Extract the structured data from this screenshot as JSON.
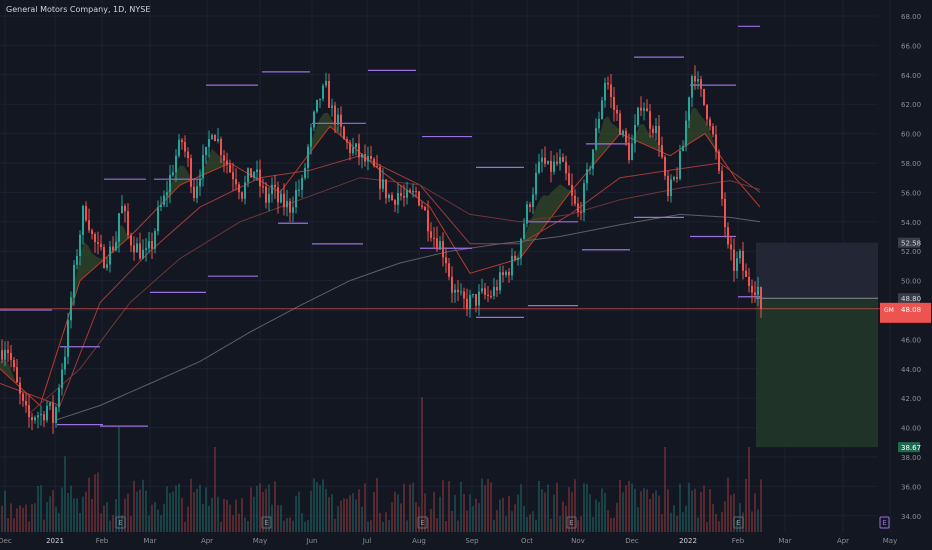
{
  "legend_text": "General Motors Company, 1D, NYSE",
  "colors": {
    "background": "#131722",
    "grid": "#1c2030",
    "up": "#26a69a",
    "down": "#ef5350",
    "ribbon": "#3d5a2a",
    "ma_fast": "#c0392b",
    "ma_mid": "#a23a3a",
    "ma_slow": "#6e3636",
    "ma_200": "#5d5f66",
    "pivot": "#9c6fe0",
    "current_price": "#ef5350",
    "profit_zone": "#1f3329",
    "risk_zone": "#232634"
  },
  "price_tags": {
    "stop": "52.58",
    "entry": "48.80",
    "last": "48.08",
    "target": "38.67",
    "last_prefix": "GM"
  },
  "earnings_marker": "E",
  "chart_data": {
    "type": "candlestick",
    "symbol": "GM",
    "title": "General Motors Company, 1D, NYSE",
    "y_ticks": [
      "68.00",
      "66.00",
      "64.00",
      "62.00",
      "60.00",
      "58.00",
      "56.00",
      "54.00",
      "52.00",
      "50.00",
      "48.00",
      "46.00",
      "44.00",
      "42.00",
      "40.00",
      "38.00",
      "36.00",
      "34.00"
    ],
    "ylim": [
      33.2,
      68.9
    ],
    "x_ticks": [
      "Dec",
      "2021",
      "Feb",
      "Mar",
      "Apr",
      "May",
      "Jun",
      "Jul",
      "Aug",
      "Sep",
      "Oct",
      "Nov",
      "Dec",
      "2022",
      "Feb",
      "Mar",
      "Apr",
      "May"
    ],
    "price_path": [
      [
        0,
        45.0
      ],
      [
        6,
        45.8
      ],
      [
        12,
        44.3
      ],
      [
        18,
        42.5
      ],
      [
        24,
        41.2
      ],
      [
        30,
        40.5
      ],
      [
        36,
        41.0
      ],
      [
        42,
        40.8
      ],
      [
        48,
        41.6
      ],
      [
        54,
        40.3
      ],
      [
        60,
        43.5
      ],
      [
        66,
        45.5
      ],
      [
        72,
        49.5
      ],
      [
        78,
        52.5
      ],
      [
        84,
        55.0
      ],
      [
        88,
        54.3
      ],
      [
        92,
        53.0
      ],
      [
        98,
        52.0
      ],
      [
        104,
        51.5
      ],
      [
        110,
        52.0
      ],
      [
        116,
        52.8
      ],
      [
        120,
        55.2
      ],
      [
        124,
        54.6
      ],
      [
        128,
        53.0
      ],
      [
        134,
        52.5
      ],
      [
        140,
        52.0
      ],
      [
        146,
        51.7
      ],
      [
        152,
        52.5
      ],
      [
        158,
        54.5
      ],
      [
        164,
        55.5
      ],
      [
        170,
        57.0
      ],
      [
        176,
        58.5
      ],
      [
        182,
        59.5
      ],
      [
        188,
        58.0
      ],
      [
        194,
        56.0
      ],
      [
        200,
        57.5
      ],
      [
        206,
        58.5
      ],
      [
        212,
        60.5
      ],
      [
        218,
        59.5
      ],
      [
        224,
        58.5
      ],
      [
        230,
        57.5
      ],
      [
        236,
        57.0
      ],
      [
        242,
        56.0
      ],
      [
        248,
        57.0
      ],
      [
        254,
        57.5
      ],
      [
        260,
        56.5
      ],
      [
        266,
        55.5
      ],
      [
        272,
        56.3
      ],
      [
        278,
        55.4
      ],
      [
        284,
        55.2
      ],
      [
        290,
        55.0
      ],
      [
        296,
        56.0
      ],
      [
        302,
        56.5
      ],
      [
        308,
        59.0
      ],
      [
        314,
        61.0
      ],
      [
        320,
        62.5
      ],
      [
        326,
        63.0
      ],
      [
        332,
        61.5
      ],
      [
        338,
        60.7
      ],
      [
        344,
        59.5
      ],
      [
        350,
        59.0
      ],
      [
        356,
        58.8
      ],
      [
        362,
        58.2
      ],
      [
        368,
        58.0
      ],
      [
        374,
        57.5
      ],
      [
        380,
        56.8
      ],
      [
        386,
        56.0
      ],
      [
        392,
        55.5
      ],
      [
        398,
        56.0
      ],
      [
        404,
        55.5
      ],
      [
        410,
        55.6
      ],
      [
        416,
        56.0
      ],
      [
        422,
        55.2
      ],
      [
        428,
        54.0
      ],
      [
        434,
        53.0
      ],
      [
        440,
        52.5
      ],
      [
        446,
        51.5
      ],
      [
        452,
        49.5
      ],
      [
        458,
        48.8
      ],
      [
        464,
        48.5
      ],
      [
        470,
        48.6
      ],
      [
        476,
        48.7
      ],
      [
        482,
        49.0
      ],
      [
        488,
        48.9
      ],
      [
        494,
        49.3
      ],
      [
        500,
        50.0
      ],
      [
        506,
        50.5
      ],
      [
        512,
        51.2
      ],
      [
        518,
        52.0
      ],
      [
        524,
        54.0
      ],
      [
        530,
        55.5
      ],
      [
        536,
        57.0
      ],
      [
        542,
        58.2
      ],
      [
        548,
        57.5
      ],
      [
        554,
        57.8
      ],
      [
        560,
        58.0
      ],
      [
        566,
        57.0
      ],
      [
        572,
        55.5
      ],
      [
        578,
        54.5
      ],
      [
        584,
        56.0
      ],
      [
        590,
        58.0
      ],
      [
        596,
        60.0
      ],
      [
        602,
        62.5
      ],
      [
        606,
        64.0
      ],
      [
        612,
        62.0
      ],
      [
        618,
        61.0
      ],
      [
        624,
        59.5
      ],
      [
        630,
        58.5
      ],
      [
        636,
        60.5
      ],
      [
        642,
        62.5
      ],
      [
        648,
        61.0
      ],
      [
        654,
        60.5
      ],
      [
        660,
        59.5
      ],
      [
        664,
        57.0
      ],
      [
        668,
        55.5
      ],
      [
        672,
        56.5
      ],
      [
        678,
        57.5
      ],
      [
        684,
        59.5
      ],
      [
        690,
        63.5
      ],
      [
        694,
        64.5
      ],
      [
        698,
        63.2
      ],
      [
        704,
        62.0
      ],
      [
        710,
        61.0
      ],
      [
        716,
        58.5
      ],
      [
        722,
        55.5
      ],
      [
        728,
        52.0
      ],
      [
        734,
        51.0
      ],
      [
        740,
        51.5
      ],
      [
        746,
        50.0
      ],
      [
        752,
        49.8
      ],
      [
        758,
        49.5
      ],
      [
        762,
        48.08
      ]
    ],
    "moving_averages": [
      {
        "role": "ma_fast",
        "points": [
          [
            0,
            44.0
          ],
          [
            40,
            41.5
          ],
          [
            80,
            50.0
          ],
          [
            130,
            53.0
          ],
          [
            180,
            56.5
          ],
          [
            230,
            58.0
          ],
          [
            280,
            56.0
          ],
          [
            330,
            60.5
          ],
          [
            380,
            57.5
          ],
          [
            430,
            55.0
          ],
          [
            470,
            50.5
          ],
          [
            520,
            51.5
          ],
          [
            570,
            56.0
          ],
          [
            620,
            60.0
          ],
          [
            670,
            58.5
          ],
          [
            705,
            60.0
          ],
          [
            735,
            57.0
          ],
          [
            760,
            55.0
          ]
        ]
      },
      {
        "role": "ma_mid",
        "points": [
          [
            0,
            43.0
          ],
          [
            60,
            41.5
          ],
          [
            100,
            48.5
          ],
          [
            150,
            52.0
          ],
          [
            200,
            55.0
          ],
          [
            260,
            57.0
          ],
          [
            310,
            57.5
          ],
          [
            360,
            58.5
          ],
          [
            420,
            56.5
          ],
          [
            470,
            52.5
          ],
          [
            520,
            52.5
          ],
          [
            570,
            54.5
          ],
          [
            620,
            57.0
          ],
          [
            670,
            57.5
          ],
          [
            720,
            58.0
          ],
          [
            760,
            56.0
          ]
        ]
      },
      {
        "role": "ma_slow",
        "points": [
          [
            30,
            41.0
          ],
          [
            80,
            44.0
          ],
          [
            130,
            48.5
          ],
          [
            180,
            51.5
          ],
          [
            240,
            54.0
          ],
          [
            300,
            55.5
          ],
          [
            360,
            57.0
          ],
          [
            420,
            56.5
          ],
          [
            470,
            54.5
          ],
          [
            520,
            54.0
          ],
          [
            570,
            54.5
          ],
          [
            620,
            55.5
          ],
          [
            680,
            56.3
          ],
          [
            730,
            56.8
          ],
          [
            760,
            56.2
          ]
        ]
      },
      {
        "role": "ma_200",
        "points": [
          [
            55,
            40.5
          ],
          [
            100,
            41.5
          ],
          [
            150,
            43.0
          ],
          [
            200,
            44.5
          ],
          [
            250,
            46.5
          ],
          [
            300,
            48.3
          ],
          [
            350,
            50.0
          ],
          [
            400,
            51.2
          ],
          [
            450,
            52.0
          ],
          [
            500,
            52.5
          ],
          [
            560,
            53.0
          ],
          [
            620,
            53.8
          ],
          [
            680,
            54.5
          ],
          [
            730,
            54.3
          ],
          [
            760,
            54.0
          ]
        ]
      }
    ],
    "pivot_levels": [
      [
        0,
        52,
        48.0
      ],
      [
        57,
        103,
        40.2
      ],
      [
        60,
        100,
        45.5
      ],
      [
        100,
        148,
        40.1
      ],
      [
        104,
        146,
        56.9
      ],
      [
        150,
        206,
        49.2
      ],
      [
        154,
        202,
        56.9
      ],
      [
        206,
        258,
        63.3
      ],
      [
        208,
        258,
        50.3
      ],
      [
        262,
        310,
        64.2
      ],
      [
        278,
        308,
        53.9
      ],
      [
        312,
        363,
        52.5
      ],
      [
        312,
        366,
        60.7
      ],
      [
        368,
        416,
        64.3
      ],
      [
        420,
        472,
        52.2
      ],
      [
        422,
        472,
        59.8
      ],
      [
        476,
        524,
        57.7
      ],
      [
        476,
        524,
        47.5
      ],
      [
        528,
        578,
        48.3
      ],
      [
        528,
        578,
        54.0
      ],
      [
        582,
        630,
        52.1
      ],
      [
        586,
        630,
        59.3
      ],
      [
        634,
        684,
        54.3
      ],
      [
        634,
        684,
        65.2
      ],
      [
        690,
        736,
        63.3
      ],
      [
        690,
        736,
        53.0
      ],
      [
        738,
        760,
        67.3
      ],
      [
        738,
        760,
        48.9
      ]
    ],
    "position": {
      "side": "short",
      "entry": 48.8,
      "stop": 52.58,
      "target": 38.67
    },
    "volume_axis": "secondary (bars from bottom)"
  }
}
